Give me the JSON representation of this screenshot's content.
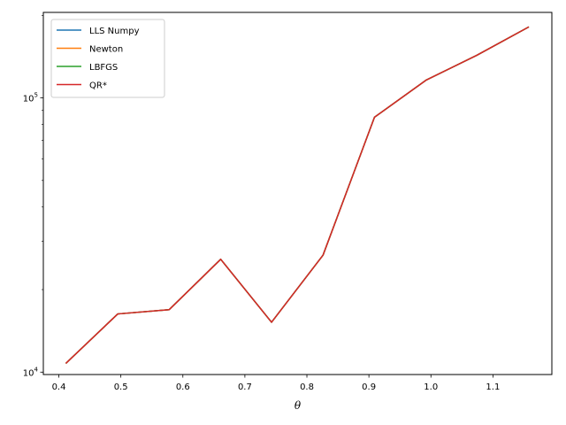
{
  "chart_data": {
    "type": "line",
    "title": "",
    "xlabel": "θ",
    "ylabel": "",
    "yscale": "log",
    "xlim": [
      0.375,
      1.195
    ],
    "ylim": [
      9800,
      205000
    ],
    "x_ticks": [
      0.4,
      0.5,
      0.6,
      0.7,
      0.8,
      0.9,
      1.0,
      1.1
    ],
    "x_tick_labels": [
      "0.4",
      "0.5",
      "0.6",
      "0.7",
      "0.8",
      "0.9",
      "1.0",
      "1.1"
    ],
    "y_major_ticks": [
      {
        "value": 10000,
        "base": "10",
        "exp": "4"
      },
      {
        "value": 100000,
        "base": "10",
        "exp": "5"
      }
    ],
    "grid": false,
    "legend_position": "top-left",
    "x": [
      0.412,
      0.495,
      0.578,
      0.661,
      0.743,
      0.826,
      0.909,
      0.992,
      1.074,
      1.157
    ],
    "series": [
      {
        "name": "LLS Numpy",
        "color": "#1f77b4",
        "values": [
          10800,
          16300,
          16900,
          25800,
          15200,
          26700,
          85000,
          116000,
          143000,
          181000
        ]
      },
      {
        "name": "Newton",
        "color": "#ff7f0e",
        "values": [
          10800,
          16300,
          16900,
          25800,
          15200,
          26700,
          85000,
          116000,
          143000,
          181000
        ]
      },
      {
        "name": "LBFGS",
        "color": "#2ca02c",
        "values": [
          10800,
          16300,
          16900,
          25800,
          15200,
          26700,
          85000,
          116000,
          143000,
          181000
        ]
      },
      {
        "name": "QR*",
        "color": "#d62728",
        "values": [
          10800,
          16300,
          16900,
          25800,
          15200,
          26700,
          85000,
          116000,
          143000,
          181000
        ]
      }
    ]
  }
}
